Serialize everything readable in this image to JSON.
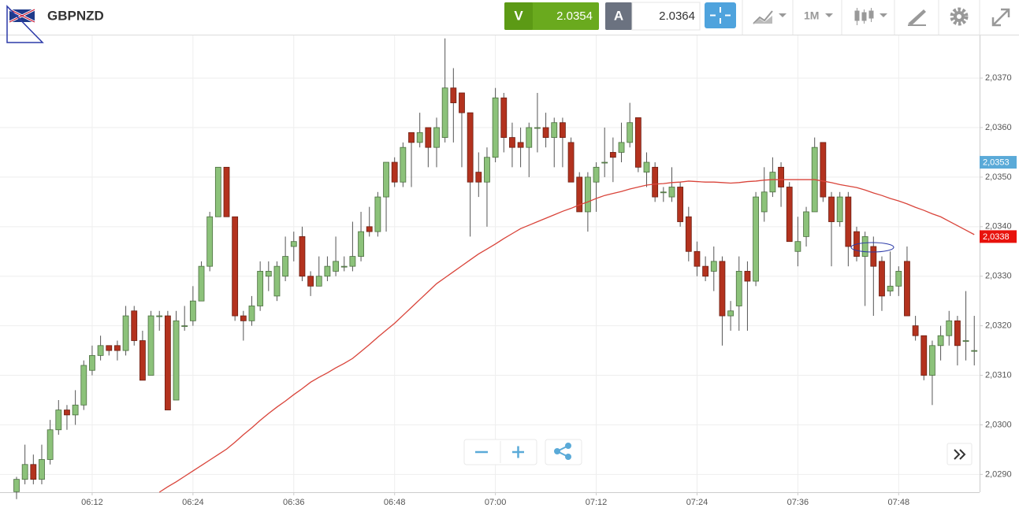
{
  "header": {
    "symbol": "GBPNZD",
    "sell_label": "V",
    "sell_price": "2.0354",
    "buy_label": "A",
    "buy_price": "2.0364",
    "timeframe": "1M"
  },
  "chart_data": {
    "type": "candlestick",
    "categories": [
      null,
      null,
      null,
      null,
      null,
      null,
      null,
      null,
      null,
      "06:12",
      null,
      null,
      null,
      null,
      null,
      null,
      null,
      null,
      null,
      null,
      null,
      "06:24",
      null,
      null,
      null,
      null,
      null,
      null,
      null,
      null,
      null,
      null,
      null,
      "06:36",
      null,
      null,
      null,
      null,
      null,
      null,
      null,
      null,
      null,
      null,
      null,
      "06:48",
      null,
      null,
      null,
      null,
      null,
      null,
      null,
      null,
      null,
      null,
      null,
      "07:00",
      null,
      null,
      null,
      null,
      null,
      null,
      null,
      null,
      null,
      null,
      null,
      "07:12",
      null,
      null,
      null,
      null,
      null,
      null,
      null,
      null,
      null,
      null,
      null,
      "07:24",
      null,
      null,
      null,
      null,
      null,
      null,
      null,
      null,
      null,
      null,
      null,
      "07:36",
      null,
      null,
      null,
      null,
      null,
      null,
      null,
      null,
      null,
      null,
      null,
      "07:48",
      null,
      null,
      null,
      null,
      null,
      null,
      null,
      null,
      null
    ],
    "open": [
      2.02865,
      2.0289,
      2.0292,
      2.0289,
      2.0293,
      2.0299,
      2.0303,
      2.0302,
      2.0304,
      2.0311,
      2.0314,
      2.0316,
      2.0316,
      2.0315,
      2.0323,
      2.0317,
      2.031,
      2.0322,
      2.0322,
      2.0305,
      2.032,
      2.0321,
      2.0325,
      2.0332,
      2.0342,
      2.0352,
      2.0342,
      2.0322,
      2.0321,
      2.0324,
      2.033,
      2.0326,
      2.033,
      2.0336,
      2.0338,
      2.033,
      2.0328,
      2.033,
      2.0331,
      2.0332,
      2.0332,
      2.0334,
      2.034,
      2.0339,
      2.0346,
      2.0353,
      2.0349,
      2.0359,
      2.0357,
      2.036,
      2.0356,
      2.0358,
      2.0368,
      2.0367,
      2.0363,
      2.0351,
      2.0349,
      2.0354,
      2.0366,
      2.0358,
      2.0357,
      2.0356,
      2.036,
      2.036,
      2.0358,
      2.0361,
      2.0357,
      2.035,
      2.0343,
      2.0349,
      2.0353,
      2.0355,
      2.0355,
      2.0357,
      2.0362,
      2.0351,
      2.0352,
      2.0347,
      2.0346,
      2.0348,
      2.0342,
      2.0335,
      2.0332,
      2.0331,
      2.0333,
      2.0322,
      2.0324,
      2.0331,
      2.0329,
      2.0343,
      2.0347,
      2.0352,
      2.0348,
      2.0335,
      2.0338,
      2.0343,
      2.0357,
      2.0346,
      2.0341,
      2.0346,
      2.0339,
      2.0334,
      2.0336,
      2.0333,
      2.0327,
      2.0328,
      2.0333,
      2.032,
      2.0318,
      2.031,
      2.0316,
      2.0318,
      2.0321,
      2.0317,
      2.0315
    ],
    "close": [
      2.0289,
      2.0292,
      2.0289,
      2.0293,
      2.0299,
      2.0303,
      2.0302,
      2.0304,
      2.0312,
      2.0314,
      2.0316,
      2.0315,
      2.0315,
      2.0322,
      2.0317,
      2.0309,
      2.0322,
      2.0322,
      2.0303,
      2.0321,
      2.032,
      2.0325,
      2.0332,
      2.0342,
      2.0352,
      2.0342,
      2.0322,
      2.0321,
      2.0324,
      2.0331,
      2.0331,
      2.0332,
      2.0334,
      2.0337,
      2.033,
      2.0328,
      2.033,
      2.0332,
      2.0333,
      2.0332,
      2.0334,
      2.0339,
      2.0339,
      2.0346,
      2.0353,
      2.0349,
      2.0356,
      2.0357,
      2.0359,
      2.0356,
      2.036,
      2.0368,
      2.0365,
      2.0363,
      2.0349,
      2.0349,
      2.0354,
      2.0366,
      2.0358,
      2.0356,
      2.0356,
      2.036,
      2.036,
      2.0358,
      2.0361,
      2.0358,
      2.0349,
      2.0343,
      2.035,
      2.0352,
      2.0353,
      2.0354,
      2.0357,
      2.0361,
      2.0352,
      2.0353,
      2.0346,
      2.0347,
      2.0348,
      2.0341,
      2.0335,
      2.0332,
      2.033,
      2.0333,
      2.0322,
      2.0323,
      2.0331,
      2.0329,
      2.0346,
      2.0347,
      2.0351,
      2.0348,
      2.0337,
      2.0337,
      2.0343,
      2.0356,
      2.0346,
      2.0341,
      2.0346,
      2.0336,
      2.0334,
      2.0338,
      2.0332,
      2.0326,
      2.0328,
      2.0331,
      2.0322,
      2.0318,
      2.031,
      2.0316,
      2.0318,
      2.0321,
      2.0316,
      2.0317,
      2.0315
    ],
    "high": [
      2.02895,
      2.0296,
      2.0294,
      2.0296,
      2.0301,
      2.0305,
      2.0304,
      2.0307,
      2.0313,
      2.0316,
      2.0318,
      2.0316,
      2.0317,
      2.0324,
      2.0324,
      2.0319,
      2.0323,
      2.0323,
      2.0323,
      2.0323,
      2.0324,
      2.0328,
      2.0333,
      2.0343,
      2.0352,
      2.0352,
      2.0342,
      2.0323,
      2.0326,
      2.0333,
      2.0333,
      2.0333,
      2.0338,
      2.0339,
      2.034,
      2.0331,
      2.0334,
      2.0334,
      2.0338,
      2.0334,
      2.0341,
      2.0343,
      2.0344,
      2.0347,
      2.0353,
      2.0354,
      2.0357,
      2.0359,
      2.0363,
      2.036,
      2.0362,
      2.0378,
      2.0372,
      2.0367,
      2.0363,
      2.0355,
      2.0356,
      2.0368,
      2.0367,
      2.0361,
      2.036,
      2.0361,
      2.0367,
      2.0363,
      2.0362,
      2.0362,
      2.0358,
      2.0351,
      2.0351,
      2.0353,
      2.036,
      2.0358,
      2.0361,
      2.0365,
      2.0362,
      2.0355,
      2.0353,
      2.0348,
      2.0352,
      2.0349,
      2.0344,
      2.0337,
      2.0334,
      2.0336,
      2.0334,
      2.0325,
      2.0334,
      2.0333,
      2.0347,
      2.0352,
      2.0354,
      2.0353,
      2.0349,
      2.0342,
      2.0344,
      2.0358,
      2.0357,
      2.0347,
      2.0347,
      2.0347,
      2.034,
      2.0339,
      2.0338,
      2.0334,
      2.0335,
      2.0332,
      2.0336,
      2.0322,
      2.0318,
      2.0317,
      2.032,
      2.0323,
      2.0322,
      2.0327,
      2.0322
    ],
    "low": [
      2.0285,
      2.0288,
      2.0288,
      2.0288,
      2.0292,
      2.0298,
      2.0299,
      2.03,
      2.0303,
      2.031,
      2.0313,
      2.0314,
      2.0313,
      2.0314,
      2.0316,
      2.0309,
      2.031,
      2.0319,
      2.0303,
      2.0305,
      2.0319,
      2.032,
      2.0325,
      2.0331,
      2.0342,
      2.0342,
      2.0321,
      2.0317,
      2.032,
      2.0323,
      2.0327,
      2.0325,
      2.0329,
      2.0333,
      2.0329,
      2.0326,
      2.0328,
      2.0329,
      2.033,
      2.0331,
      2.0331,
      2.0333,
      2.0338,
      2.0338,
      2.0339,
      2.0348,
      2.0348,
      2.0348,
      2.0356,
      2.0352,
      2.0352,
      2.0357,
      2.0357,
      2.0352,
      2.0338,
      2.0346,
      2.034,
      2.0353,
      2.0355,
      2.0352,
      2.0352,
      2.035,
      2.0355,
      2.0356,
      2.0352,
      2.0352,
      2.0349,
      2.0343,
      2.0339,
      2.0343,
      2.035,
      2.0349,
      2.0353,
      2.0356,
      2.0351,
      2.0348,
      2.0345,
      2.0345,
      2.0345,
      2.034,
      2.0333,
      2.033,
      2.0329,
      2.0327,
      2.0316,
      2.0319,
      2.0319,
      2.0319,
      2.0328,
      2.0341,
      2.0346,
      2.0344,
      2.0337,
      2.0332,
      2.0336,
      2.0343,
      2.0345,
      2.0332,
      2.034,
      2.0332,
      2.0333,
      2.0324,
      2.0322,
      2.0323,
      2.0326,
      2.0326,
      2.0322,
      2.0317,
      2.0309,
      2.0304,
      2.0313,
      2.0316,
      2.0312,
      2.0313,
      2.0312
    ],
    "up_color": "#8cc27a",
    "down_color": "#b3321e",
    "moving_average": {
      "color": "#d9443a",
      "values": [
        null,
        null,
        null,
        null,
        null,
        null,
        null,
        null,
        null,
        null,
        null,
        null,
        null,
        null,
        null,
        null,
        null,
        2.02864,
        2.02875,
        2.02885,
        2.02896,
        2.02907,
        2.02918,
        2.02929,
        2.0294,
        2.02951,
        2.02965,
        2.0298,
        2.02994,
        2.03009,
        2.03023,
        2.03036,
        2.03048,
        2.03061,
        2.03073,
        2.03086,
        2.03096,
        2.03105,
        2.03115,
        2.03124,
        2.03134,
        2.03148,
        2.03162,
        2.03177,
        2.03191,
        2.03205,
        2.03221,
        2.03237,
        2.03253,
        2.03269,
        2.03285,
        2.03297,
        2.03309,
        2.03321,
        2.03333,
        2.03345,
        2.03355,
        2.03365,
        2.03376,
        2.03386,
        2.03396,
        2.03403,
        2.0341,
        2.03417,
        2.03424,
        2.03431,
        2.03437,
        2.03444,
        2.0345,
        2.03457,
        2.03463,
        2.03467,
        2.03471,
        2.03476,
        2.0348,
        2.03484,
        2.03486,
        2.03487,
        2.03489,
        2.0349,
        2.03492,
        2.03491,
        2.0349,
        2.0349,
        2.03489,
        2.03488,
        2.03489,
        2.03491,
        2.03492,
        2.03494,
        2.03495,
        2.03495,
        2.03495,
        2.03495,
        2.03495,
        2.03495,
        2.03492,
        2.03489,
        2.03485,
        2.03482,
        2.03479,
        2.03474,
        2.03468,
        2.03463,
        2.03457,
        2.03452,
        2.03446,
        2.03439,
        2.03433,
        2.03426,
        2.0342,
        2.03411,
        2.03402,
        2.03393,
        2.03384
      ]
    },
    "ylim": [
      2.02864,
      2.03786
    ],
    "yticks": [
      {
        "value": 2.029,
        "label": "2,0290"
      },
      {
        "value": 2.03,
        "label": "2,0300"
      },
      {
        "value": 2.031,
        "label": "2,0310"
      },
      {
        "value": 2.032,
        "label": "2,0320"
      },
      {
        "value": 2.033,
        "label": "2,0330"
      },
      {
        "value": 2.034,
        "label": "2,0340"
      },
      {
        "value": 2.035,
        "label": "2,0350"
      },
      {
        "value": 2.036,
        "label": "2,0360"
      },
      {
        "value": 2.037,
        "label": "2,0370"
      }
    ],
    "price_tags": [
      {
        "value": 2.0353,
        "label": "2,0353",
        "color": "#5aaad8"
      },
      {
        "value": 2.0338,
        "label": "2,0338",
        "color": "#e8120c"
      }
    ],
    "grid": true
  }
}
